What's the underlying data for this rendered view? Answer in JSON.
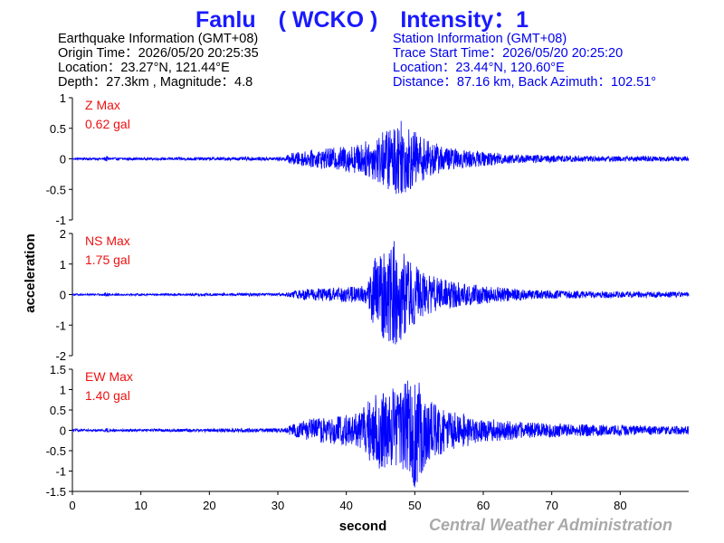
{
  "header": {
    "title": "Fanlu　( WCKO )　Intensity：1"
  },
  "earthquake_info": {
    "lines": [
      "Earthquake Information  (GMT+08)",
      "Origin Time：2026/05/20 20:25:35",
      "Location：23.27°N, 121.44°E",
      "Depth：27.3km , Magnitude：4.8"
    ]
  },
  "station_info": {
    "lines": [
      "Station Information  (GMT+08)",
      "Trace Start Time：2026/05/20 20:25:20",
      "Location：23.44°N, 120.60°E",
      "Distance：87.16 km, Back Azimuth：102.51°"
    ]
  },
  "footer": {
    "credit": "Central Weather Administration"
  },
  "colors": {
    "title": "#1a1aff",
    "trace": "#0000ff",
    "max_label": "#ee1111",
    "station_text": "#0000ee",
    "credit": "#a9a9a9"
  },
  "chart_data": {
    "type": "line",
    "xlabel": "second",
    "ylabel": "acceleration",
    "xlim": [
      0,
      90
    ],
    "xticks": [
      "0",
      "10",
      "20",
      "30",
      "40",
      "50",
      "60",
      "70",
      "80"
    ],
    "panels": [
      {
        "component": "Z",
        "max_label": "Z Max",
        "max_value": "0.62 gal",
        "peak": 0.62,
        "ylim": [
          -1,
          1
        ],
        "yticks": [
          "1",
          "0.5",
          "0",
          "-0.5",
          "-1"
        ],
        "envelope": [
          [
            0,
            0.02
          ],
          [
            4.5,
            0.02
          ],
          [
            5,
            0.05
          ],
          [
            5.5,
            0.02
          ],
          [
            31,
            0.03
          ],
          [
            32,
            0.1
          ],
          [
            35,
            0.14
          ],
          [
            38,
            0.18
          ],
          [
            42,
            0.25
          ],
          [
            44,
            0.35
          ],
          [
            46,
            0.5
          ],
          [
            48,
            0.62
          ],
          [
            50,
            0.45
          ],
          [
            52,
            0.3
          ],
          [
            55,
            0.18
          ],
          [
            60,
            0.12
          ],
          [
            65,
            0.07
          ],
          [
            75,
            0.05
          ],
          [
            90,
            0.04
          ]
        ]
      },
      {
        "component": "NS",
        "max_label": "NS Max",
        "max_value": "1.75 gal",
        "peak": 1.75,
        "ylim": [
          -2,
          2
        ],
        "yticks": [
          "2",
          "1",
          "0",
          "-1",
          "-2"
        ],
        "envelope": [
          [
            0,
            0.03
          ],
          [
            4.5,
            0.03
          ],
          [
            5,
            0.08
          ],
          [
            5.5,
            0.03
          ],
          [
            31,
            0.05
          ],
          [
            33,
            0.15
          ],
          [
            36,
            0.22
          ],
          [
            40,
            0.25
          ],
          [
            43,
            0.3
          ],
          [
            44,
            1.2
          ],
          [
            46,
            1.5
          ],
          [
            47,
            1.75
          ],
          [
            49,
            1.2
          ],
          [
            51,
            0.75
          ],
          [
            54,
            0.5
          ],
          [
            58,
            0.35
          ],
          [
            62,
            0.25
          ],
          [
            68,
            0.15
          ],
          [
            75,
            0.12
          ],
          [
            90,
            0.08
          ]
        ]
      },
      {
        "component": "EW",
        "max_label": "EW Max",
        "max_value": "1.40 gal",
        "peak": 1.4,
        "ylim": [
          -1.5,
          1.5
        ],
        "yticks": [
          "1.5",
          "1",
          "0.5",
          "0",
          "-0.5",
          "-1",
          "-1.5"
        ],
        "envelope": [
          [
            0,
            0.03
          ],
          [
            4.5,
            0.03
          ],
          [
            5,
            0.06
          ],
          [
            5.5,
            0.03
          ],
          [
            31,
            0.05
          ],
          [
            32,
            0.15
          ],
          [
            35,
            0.3
          ],
          [
            39,
            0.35
          ],
          [
            42,
            0.45
          ],
          [
            44,
            0.9
          ],
          [
            46,
            1.0
          ],
          [
            48,
            1.1
          ],
          [
            50,
            1.4
          ],
          [
            52,
            0.8
          ],
          [
            55,
            0.5
          ],
          [
            60,
            0.3
          ],
          [
            66,
            0.2
          ],
          [
            75,
            0.15
          ],
          [
            90,
            0.1
          ]
        ]
      }
    ]
  }
}
